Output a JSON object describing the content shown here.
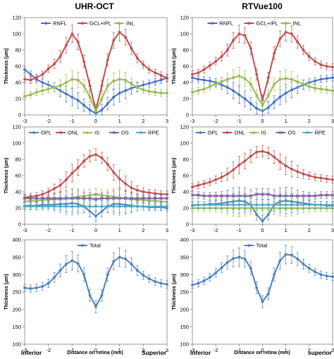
{
  "column_titles": [
    "UHR-OCT",
    "RTVue100"
  ],
  "x_axis_label": "Distance on retina (mm)",
  "direction_left": "Inferior",
  "direction_right": "Superior",
  "direction_right_alt": "superior",
  "y_axis_label": "Thickness (µm)",
  "colors": {
    "RNFL": "#4472c4",
    "GCL+IPL": "#c0504d",
    "INL": "#9bbb59",
    "OPL": "#4f81bd",
    "ONL": "#c0504d",
    "IS": "#9bbb59",
    "OS": "#8064a2",
    "RPE": "#4bacc6",
    "Total": "#4f81bd"
  },
  "chart_data": [
    {
      "type": "line",
      "column": "UHR-OCT",
      "row": 1,
      "x": [
        -3,
        -2.75,
        -2.5,
        -2.25,
        -2,
        -1.75,
        -1.5,
        -1.25,
        -1,
        -0.75,
        -0.5,
        -0.25,
        0,
        0.25,
        0.5,
        0.75,
        1,
        1.25,
        1.5,
        1.75,
        2,
        2.25,
        2.5,
        2.75,
        3
      ],
      "xlim": [
        -3,
        3
      ],
      "ylim": [
        0,
        120
      ],
      "yticks": [
        0,
        20,
        40,
        60,
        80,
        100,
        120
      ],
      "xticks": [
        -3,
        -2,
        -1,
        0,
        1,
        2,
        3
      ],
      "series": [
        {
          "name": "RNFL",
          "values": [
            56,
            50,
            44,
            40,
            37,
            34,
            30,
            26,
            22,
            18,
            12,
            6,
            2,
            6,
            14,
            22,
            27,
            30,
            33,
            35,
            37,
            39,
            41,
            43,
            46
          ]
        },
        {
          "name": "GCL+IPL",
          "values": [
            44,
            43,
            46,
            50,
            57,
            63,
            72,
            86,
            100,
            90,
            66,
            36,
            6,
            36,
            68,
            92,
            102,
            96,
            82,
            70,
            62,
            56,
            52,
            49,
            45
          ]
        },
        {
          "name": "INL",
          "values": [
            23,
            25,
            28,
            30,
            32,
            34,
            36,
            40,
            44,
            43,
            36,
            22,
            5,
            20,
            36,
            42,
            44,
            43,
            38,
            34,
            31,
            29,
            28,
            27,
            27
          ]
        }
      ]
    },
    {
      "type": "line",
      "column": "RTVue100",
      "row": 1,
      "x": [
        -3,
        -2.75,
        -2.5,
        -2.25,
        -2,
        -1.75,
        -1.5,
        -1.25,
        -1,
        -0.75,
        -0.5,
        -0.25,
        0,
        0.25,
        0.5,
        0.75,
        1,
        1.25,
        1.5,
        1.75,
        2,
        2.25,
        2.5,
        2.75,
        3
      ],
      "xlim": [
        -3,
        3
      ],
      "ylim": [
        0,
        120
      ],
      "yticks": [
        0,
        20,
        40,
        60,
        80,
        100,
        120
      ],
      "xticks": [
        -3,
        -2,
        -1,
        0,
        1,
        2,
        3
      ],
      "series": [
        {
          "name": "RNFL",
          "values": [
            46,
            44,
            43,
            42,
            40,
            37,
            34,
            30,
            25,
            20,
            14,
            8,
            5,
            9,
            16,
            22,
            27,
            31,
            34,
            37,
            40,
            42,
            44,
            45,
            46
          ]
        },
        {
          "name": "GCL+IPL",
          "values": [
            50,
            52,
            56,
            61,
            66,
            72,
            80,
            92,
            100,
            98,
            82,
            50,
            18,
            46,
            76,
            94,
            102,
            100,
            90,
            80,
            72,
            66,
            62,
            60,
            59
          ]
        },
        {
          "name": "INL",
          "values": [
            28,
            30,
            32,
            35,
            38,
            41,
            44,
            46,
            48,
            45,
            38,
            24,
            12,
            24,
            38,
            44,
            45,
            44,
            41,
            38,
            35,
            33,
            32,
            31,
            30
          ]
        }
      ]
    },
    {
      "type": "line",
      "column": "UHR-OCT",
      "row": 2,
      "x": [
        -3,
        -2.75,
        -2.5,
        -2.25,
        -2,
        -1.75,
        -1.5,
        -1.25,
        -1,
        -0.75,
        -0.5,
        -0.25,
        0,
        0.25,
        0.5,
        0.75,
        1,
        1.25,
        1.5,
        1.75,
        2,
        2.25,
        2.5,
        2.75,
        3
      ],
      "xlim": [
        -3,
        3
      ],
      "ylim": [
        0,
        120
      ],
      "yticks": [
        0,
        20,
        40,
        60,
        80,
        100,
        120
      ],
      "xticks": [
        -3,
        -2,
        -1,
        0,
        1,
        2,
        3
      ],
      "series": [
        {
          "name": "OPL",
          "values": [
            23,
            23,
            23,
            24,
            24,
            24,
            25,
            25,
            26,
            25,
            22,
            16,
            10,
            16,
            22,
            25,
            25,
            24,
            23,
            22,
            22,
            21,
            21,
            21,
            20
          ]
        },
        {
          "name": "ONL",
          "values": [
            33,
            34,
            35,
            37,
            40,
            44,
            48,
            55,
            63,
            70,
            78,
            84,
            86,
            82,
            74,
            64,
            56,
            50,
            45,
            42,
            40,
            39,
            38,
            37,
            37
          ]
        },
        {
          "name": "IS",
          "values": [
            28,
            29,
            29,
            30,
            30,
            31,
            31,
            32,
            33,
            34,
            35,
            36,
            37,
            36,
            35,
            34,
            33,
            32,
            31,
            30,
            30,
            29,
            29,
            28,
            28
          ]
        },
        {
          "name": "OS",
          "values": [
            32,
            32,
            32,
            32,
            32,
            32,
            32,
            32,
            32,
            32,
            32,
            32,
            31,
            32,
            32,
            32,
            32,
            32,
            32,
            32,
            32,
            32,
            32,
            32,
            32
          ]
        },
        {
          "name": "RPE",
          "values": [
            22,
            22,
            22,
            22,
            22,
            22,
            22,
            22,
            22,
            22,
            22,
            22,
            22,
            22,
            22,
            22,
            22,
            22,
            22,
            22,
            22,
            22,
            22,
            22,
            22
          ]
        }
      ]
    },
    {
      "type": "line",
      "column": "RTVue100",
      "row": 2,
      "x": [
        -3,
        -2.75,
        -2.5,
        -2.25,
        -2,
        -1.75,
        -1.5,
        -1.25,
        -1,
        -0.75,
        -0.5,
        -0.25,
        0,
        0.25,
        0.5,
        0.75,
        1,
        1.25,
        1.5,
        1.75,
        2,
        2.25,
        2.5,
        2.75,
        3
      ],
      "xlim": [
        -3,
        3
      ],
      "ylim": [
        0,
        120
      ],
      "yticks": [
        0,
        20,
        40,
        60,
        80,
        100,
        120
      ],
      "xticks": [
        -3,
        -2,
        -1,
        0,
        1,
        2,
        3
      ],
      "series": [
        {
          "name": "OPL",
          "values": [
            23,
            24,
            24,
            25,
            25,
            26,
            27,
            28,
            29,
            28,
            24,
            12,
            4,
            12,
            24,
            28,
            29,
            28,
            27,
            26,
            25,
            24,
            24,
            23,
            23
          ]
        },
        {
          "name": "ONL",
          "values": [
            46,
            48,
            50,
            52,
            55,
            58,
            62,
            67,
            73,
            78,
            84,
            89,
            90,
            88,
            83,
            77,
            72,
            68,
            65,
            62,
            60,
            58,
            57,
            56,
            55
          ]
        },
        {
          "name": "IS",
          "values": [
            20,
            20,
            20,
            20,
            20,
            20,
            20,
            20,
            20,
            20,
            20,
            20,
            20,
            20,
            20,
            20,
            20,
            20,
            20,
            20,
            20,
            20,
            20,
            20,
            20
          ]
        },
        {
          "name": "OS",
          "values": [
            36,
            36,
            35,
            35,
            35,
            35,
            35,
            35,
            35,
            35,
            35,
            37,
            37,
            37,
            35,
            35,
            35,
            35,
            35,
            35,
            35,
            35,
            36,
            36,
            36
          ]
        },
        {
          "name": "RPE",
          "values": [
            24,
            24,
            24,
            24,
            24,
            24,
            24,
            24,
            24,
            24,
            24,
            24,
            24,
            24,
            24,
            24,
            24,
            24,
            24,
            24,
            24,
            24,
            24,
            24,
            24
          ]
        }
      ]
    },
    {
      "type": "line",
      "column": "UHR-OCT",
      "row": 3,
      "x": [
        -3,
        -2.75,
        -2.5,
        -2.25,
        -2,
        -1.75,
        -1.5,
        -1.25,
        -1,
        -0.75,
        -0.5,
        -0.25,
        0,
        0.25,
        0.5,
        0.75,
        1,
        1.25,
        1.5,
        1.75,
        2,
        2.25,
        2.5,
        2.75,
        3
      ],
      "xlim": [
        -3,
        3
      ],
      "ylim": [
        100,
        400
      ],
      "yticks": [
        100,
        150,
        200,
        250,
        300,
        350,
        400
      ],
      "xticks": [
        -3,
        -2,
        -1,
        0,
        1,
        2,
        3
      ],
      "series": [
        {
          "name": "Total",
          "values": [
            262,
            260,
            262,
            266,
            275,
            292,
            312,
            330,
            340,
            332,
            300,
            240,
            208,
            240,
            300,
            338,
            350,
            345,
            330,
            312,
            298,
            288,
            280,
            275,
            272
          ]
        }
      ]
    },
    {
      "type": "line",
      "column": "RTVue100",
      "row": 3,
      "x": [
        -3,
        -2.75,
        -2.5,
        -2.25,
        -2,
        -1.75,
        -1.5,
        -1.25,
        -1,
        -0.75,
        -0.5,
        -0.25,
        0,
        0.25,
        0.5,
        0.75,
        1,
        1.25,
        1.5,
        1.75,
        2,
        2.25,
        2.5,
        2.75,
        3
      ],
      "xlim": [
        -3,
        3
      ],
      "ylim": [
        100,
        400
      ],
      "yticks": [
        100,
        150,
        200,
        250,
        300,
        350,
        400
      ],
      "xticks": [
        -3,
        -2,
        -1,
        0,
        1,
        2,
        3
      ],
      "series": [
        {
          "name": "Total",
          "values": [
            270,
            275,
            282,
            292,
            305,
            320,
            335,
            346,
            350,
            345,
            318,
            262,
            222,
            245,
            300,
            340,
            358,
            356,
            345,
            330,
            318,
            308,
            300,
            296,
            294
          ]
        }
      ]
    }
  ]
}
